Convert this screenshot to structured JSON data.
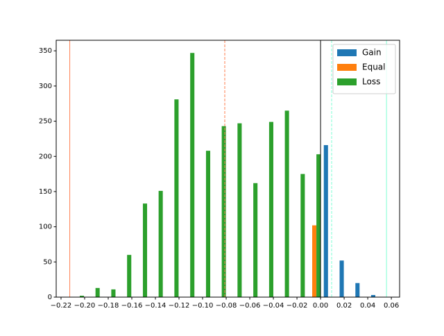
{
  "chart_data": {
    "type": "histogram",
    "bins": [
      -0.2126,
      -0.1992,
      -0.1859,
      -0.1725,
      -0.1591,
      -0.1457,
      -0.1324,
      -0.119,
      -0.1056,
      -0.0922,
      -0.0789,
      -0.0655,
      -0.0521,
      -0.0387,
      -0.0254,
      -0.012,
      0.0014,
      0.0148,
      0.0282,
      0.0415,
      0.0549
    ],
    "series": [
      {
        "name": "Gain",
        "color": "#1f77b4",
        "values": [
          0,
          0,
          0,
          0,
          0,
          0,
          0,
          0,
          0,
          0,
          0,
          0,
          0,
          0,
          0,
          0,
          216,
          52,
          20,
          3
        ]
      },
      {
        "name": "Equal",
        "color": "#ff7f0e",
        "values": [
          0,
          0,
          0,
          0,
          0,
          0,
          0,
          0,
          0,
          0,
          0,
          0,
          0,
          0,
          0,
          102,
          0,
          0,
          0,
          0
        ]
      },
      {
        "name": "Loss",
        "color": "#2ca02c",
        "values": [
          2,
          13,
          11,
          60,
          133,
          151,
          281,
          347,
          208,
          243,
          247,
          162,
          249,
          265,
          175,
          203,
          0,
          0,
          0,
          0
        ]
      }
    ],
    "vlines": [
      {
        "x": -0.2126,
        "color": "#ff7f50",
        "style": "solid"
      },
      {
        "x": -0.0812,
        "color": "#ff7f50",
        "style": "dashed"
      },
      {
        "x": 0.0,
        "color": "#000000",
        "style": "solid"
      },
      {
        "x": 0.0094,
        "color": "#7fffd4",
        "style": "dashed"
      },
      {
        "x": 0.0559,
        "color": "#7fffd4",
        "style": "solid"
      }
    ],
    "xlim": [
      -0.2241,
      0.067
    ],
    "ylim": [
      0,
      365
    ],
    "xticks": [
      {
        "value": -0.22,
        "label": "−0.22"
      },
      {
        "value": -0.2,
        "label": "−0.20"
      },
      {
        "value": -0.18,
        "label": "−0.18"
      },
      {
        "value": -0.16,
        "label": "−0.16"
      },
      {
        "value": -0.14,
        "label": "−0.14"
      },
      {
        "value": -0.12,
        "label": "−0.12"
      },
      {
        "value": -0.1,
        "label": "−0.10"
      },
      {
        "value": -0.08,
        "label": "−0.08"
      },
      {
        "value": -0.06,
        "label": "−0.06"
      },
      {
        "value": -0.04,
        "label": "−0.04"
      },
      {
        "value": -0.02,
        "label": "−0.02"
      },
      {
        "value": 0,
        "label": "0.00"
      },
      {
        "value": 0.02,
        "label": "0.02"
      },
      {
        "value": 0.04,
        "label": "0.04"
      },
      {
        "value": 0.06,
        "label": "0.06"
      }
    ],
    "yticks": [
      0,
      50,
      100,
      150,
      200,
      250,
      300,
      350
    ],
    "legend": "upper right"
  }
}
